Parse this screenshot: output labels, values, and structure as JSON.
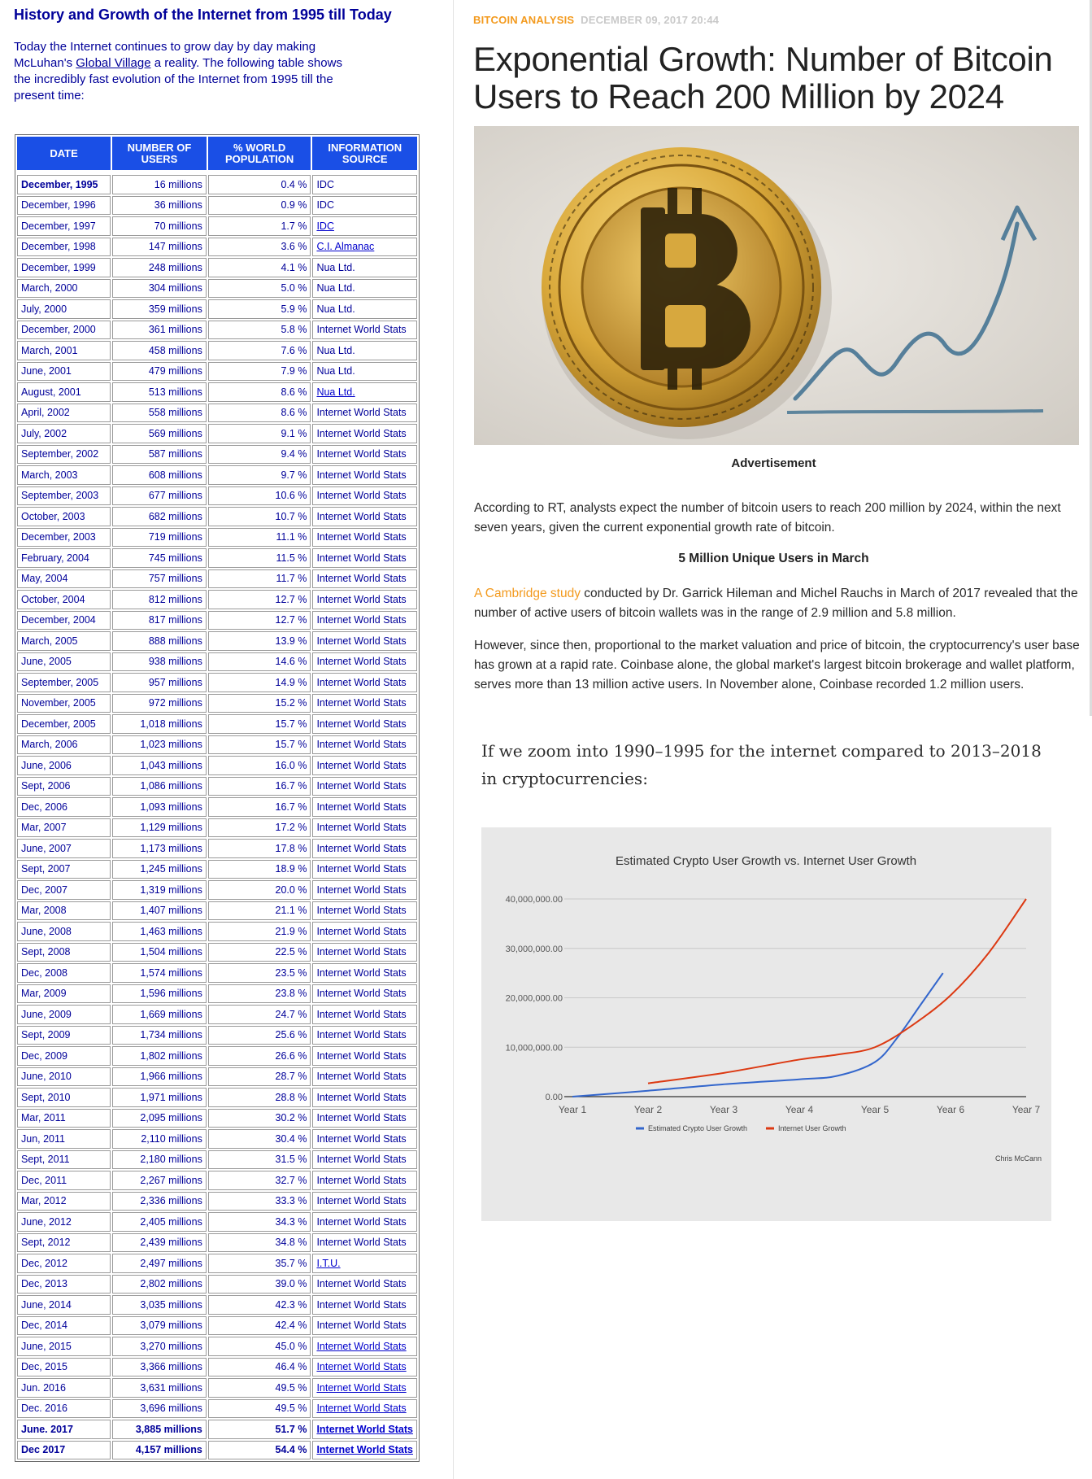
{
  "left": {
    "title": "History and Growth of the Internet from 1995 till Today",
    "intro_before": "Today the Internet continues to grow day by day making McLuhan's ",
    "intro_link": "Global Village",
    "intro_after": " a reality. The following table shows the incredibly fast evolution of the Internet from 1995 till the present time:",
    "table": {
      "headers": [
        "DATE",
        "NUMBER OF USERS",
        "% WORLD POPULATION",
        "INFORMATION SOURCE"
      ],
      "rows": [
        [
          "December, 1995",
          "16 millions",
          "0.4 %",
          "IDC"
        ],
        [
          "December, 1996",
          "36 millions",
          "0.9 %",
          "IDC"
        ],
        [
          "December, 1997",
          "70 millions",
          "1.7 %",
          "IDC"
        ],
        [
          "December, 1998",
          "147 millions",
          "3.6 %",
          "C.I. Almanac"
        ],
        [
          "December, 1999",
          "248 millions",
          "4.1 %",
          "Nua Ltd."
        ],
        [
          "March, 2000",
          "304 millions",
          "5.0 %",
          "Nua Ltd."
        ],
        [
          "July, 2000",
          "359 millions",
          "5.9 %",
          "Nua Ltd."
        ],
        [
          "December, 2000",
          "361 millions",
          "5.8 %",
          "Internet World Stats"
        ],
        [
          "March, 2001",
          "458 millions",
          "7.6 %",
          "Nua Ltd."
        ],
        [
          "June, 2001",
          "479 millions",
          "7.9 %",
          "Nua Ltd."
        ],
        [
          "August, 2001",
          "513 millions",
          "8.6 %",
          "Nua Ltd."
        ],
        [
          "April, 2002",
          "558 millions",
          "8.6 %",
          "Internet World Stats"
        ],
        [
          "July, 2002",
          "569 millions",
          "9.1 %",
          "Internet World Stats"
        ],
        [
          "September, 2002",
          "587 millions",
          "9.4 %",
          "Internet World Stats"
        ],
        [
          "March, 2003",
          "608 millions",
          "9.7 %",
          "Internet World Stats"
        ],
        [
          "September, 2003",
          "677 millions",
          "10.6 %",
          "Internet World Stats"
        ],
        [
          "October, 2003",
          "682 millions",
          "10.7 %",
          "Internet World Stats"
        ],
        [
          "December, 2003",
          "719 millions",
          "11.1 %",
          "Internet World Stats"
        ],
        [
          "February, 2004",
          "745 millions",
          "11.5 %",
          "Internet World Stats"
        ],
        [
          "May, 2004",
          "757 millions",
          "11.7 %",
          "Internet World Stats"
        ],
        [
          "October, 2004",
          "812 millions",
          "12.7 %",
          "Internet World Stats"
        ],
        [
          "December, 2004",
          "817 millions",
          "12.7 %",
          "Internet World Stats"
        ],
        [
          "March, 2005",
          "888 millions",
          "13.9 %",
          "Internet World Stats"
        ],
        [
          "June, 2005",
          "938 millions",
          "14.6 %",
          "Internet World Stats"
        ],
        [
          "September, 2005",
          "957 millions",
          "14.9 %",
          "Internet World Stats"
        ],
        [
          "November, 2005",
          "972 millions",
          "15.2 %",
          "Internet World Stats"
        ],
        [
          "December, 2005",
          "1,018 millions",
          "15.7 %",
          "Internet World Stats"
        ],
        [
          "March, 2006",
          "1,023 millions",
          "15.7 %",
          "Internet World Stats"
        ],
        [
          "June, 2006",
          "1,043 millions",
          "16.0 %",
          "Internet World Stats"
        ],
        [
          "Sept, 2006",
          "1,086 millions",
          "16.7 %",
          "Internet World Stats"
        ],
        [
          "Dec, 2006",
          "1,093 millions",
          "16.7 %",
          "Internet World Stats"
        ],
        [
          "Mar, 2007",
          "1,129 millions",
          "17.2 %",
          "Internet World Stats"
        ],
        [
          "June, 2007",
          "1,173 millions",
          "17.8 %",
          "Internet World Stats"
        ],
        [
          "Sept, 2007",
          "1,245 millions",
          "18.9 %",
          "Internet World Stats"
        ],
        [
          "Dec, 2007",
          "1,319 millions",
          "20.0 %",
          "Internet World Stats"
        ],
        [
          "Mar, 2008",
          "1,407 millions",
          "21.1 %",
          "Internet World Stats"
        ],
        [
          "June, 2008",
          "1,463 millions",
          "21.9 %",
          "Internet World Stats"
        ],
        [
          "Sept, 2008",
          "1,504 millions",
          "22.5 %",
          "Internet World Stats"
        ],
        [
          "Dec, 2008",
          "1,574 millions",
          "23.5 %",
          "Internet World Stats"
        ],
        [
          "Mar, 2009",
          "1,596 millions",
          "23.8 %",
          "Internet World Stats"
        ],
        [
          "June, 2009",
          "1,669 millions",
          "24.7 %",
          "Internet World Stats"
        ],
        [
          "Sept, 2009",
          "1,734 millions",
          "25.6 %",
          "Internet World Stats"
        ],
        [
          "Dec, 2009",
          "1,802 millions",
          "26.6 %",
          "Internet World Stats"
        ],
        [
          "June, 2010",
          "1,966 millions",
          "28.7 %",
          "Internet World Stats"
        ],
        [
          "Sept, 2010",
          "1,971 millions",
          "28.8 %",
          "Internet World Stats"
        ],
        [
          "Mar, 2011",
          "2,095 millions",
          "30.2 %",
          "Internet World Stats"
        ],
        [
          "Jun, 2011",
          "2,110 millions",
          "30.4 %",
          "Internet World Stats"
        ],
        [
          "Sept, 2011",
          "2,180 millions",
          "31.5 %",
          "Internet World Stats"
        ],
        [
          "Dec, 2011",
          "2,267 millions",
          "32.7 %",
          "Internet World Stats"
        ],
        [
          "Mar, 2012",
          "2,336 millions",
          "33.3 %",
          "Internet World Stats"
        ],
        [
          "June, 2012",
          "2,405 millions",
          "34.3 %",
          "Internet World Stats"
        ],
        [
          "Sept, 2012",
          "2,439 millions",
          "34.8 %",
          "Internet World Stats"
        ],
        [
          "Dec, 2012",
          "2,497 millions",
          "35.7 %",
          "I.T.U."
        ],
        [
          "Dec, 2013",
          "2,802 millions",
          "39.0 %",
          "Internet World Stats"
        ],
        [
          "June, 2014",
          "3,035 millions",
          "42.3 %",
          "Internet World Stats"
        ],
        [
          "Dec, 2014",
          "3,079 millions",
          "42.4 %",
          "Internet World Stats"
        ],
        [
          "June, 2015",
          "3,270 millions",
          "45.0 %",
          "Internet World Stats"
        ],
        [
          "Dec, 2015",
          "3,366 millions",
          "46.4 %",
          "Internet World Stats"
        ],
        [
          "Jun. 2016",
          "3,631 millions",
          "49.5 %",
          "Internet World Stats"
        ],
        [
          "Dec. 2016",
          "3,696 millions",
          "49.5 %",
          "Internet World Stats"
        ],
        [
          "June. 2017",
          "3,885 millions",
          "51.7 %",
          "Internet World Stats"
        ],
        [
          "Dec 2017",
          "4,157 millions",
          "54.4 %",
          "Internet World Stats"
        ]
      ],
      "linked_source_rows": [
        2,
        3,
        10,
        52,
        56,
        57,
        58,
        59,
        60,
        61
      ],
      "bold_rows": [
        0,
        60,
        61
      ],
      "bold_date_rows": [
        0
      ]
    }
  },
  "article": {
    "category": "BITCOIN ANALYSIS",
    "date": "DECEMBER 09, 2017 20:44",
    "headline": "Exponential Growth: Number of Bitcoin Users to Reach 200 Million by 2024",
    "ad_label": "Advertisement",
    "p1": "According to RT, analysts expect the number of bitcoin users to reach 200 million by 2024, within the next seven years, given the current exponential growth rate of bitcoin.",
    "subheading": "5 Million Unique Users in March",
    "p2_link": "A Cambridge study",
    "p2_rest": " conducted by Dr. Garrick Hileman and Michel Rauchs in March of 2017 revealed that the number of active users of bitcoin wallets was in the range of 2.9 million and 5.8 million.",
    "p3": "However, since then, proportional to the market valuation and price of bitcoin, the cryptocurrency's user base has grown at a rapid rate. Coinbase alone, the global market's largest bitcoin brokerage and wallet platform, serves more than 13 million active users. In November alone, Coinbase recorded 1.2 million users.",
    "serif_p": "If we zoom into 1990–1995 for the internet compared to 2013–2018 in cryptocurrencies:"
  },
  "chart_data": {
    "type": "line",
    "title": "Estimated Crypto User Growth vs. Internet User Growth",
    "categories": [
      "Year 1",
      "Year 2",
      "Year 3",
      "Year 4",
      "Year 5",
      "Year 6",
      "Year 7"
    ],
    "y_tick_labels": [
      "0.00",
      "10,000,000.00",
      "20,000,000.00",
      "30,000,000.00",
      "40,000,000.00"
    ],
    "ylim": [
      0,
      40000000
    ],
    "grid": true,
    "legend": "bottom",
    "credit": "Chris McCann",
    "series": [
      {
        "name": "Estimated Crypto User Growth",
        "color": "#3366cc",
        "x": [
          1,
          2,
          3,
          4,
          4.5,
          5,
          5.3,
          5.6,
          5.9
        ],
        "values": [
          0,
          1200000,
          2500000,
          3500000,
          4200000,
          7000000,
          12000000,
          18500000,
          25000000
        ]
      },
      {
        "name": "Internet User Growth",
        "color": "#dc3912",
        "x": [
          2,
          3,
          4,
          4.5,
          5,
          5.5,
          6,
          6.5,
          7
        ],
        "values": [
          2700000,
          4800000,
          7500000,
          8500000,
          10000000,
          14500000,
          20500000,
          29000000,
          40000000
        ]
      }
    ]
  },
  "colors": {
    "accent_orange": "#f39a1e",
    "table_header_blue": "#1a4fe6",
    "table_text_navy": "#000099"
  }
}
